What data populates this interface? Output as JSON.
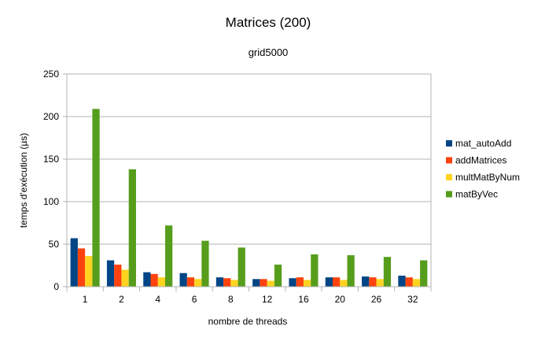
{
  "chart_data": {
    "type": "bar",
    "title": "Matrices (200)",
    "subtitle": "grid5000",
    "xlabel": "nombre de threads",
    "ylabel": "temps d'exécution (µs)",
    "ylim": [
      0,
      250
    ],
    "yticks": [
      0,
      50,
      100,
      150,
      200,
      250
    ],
    "grid": "horizontal",
    "legend": "right",
    "categories": [
      "1",
      "2",
      "4",
      "6",
      "8",
      "12",
      "16",
      "20",
      "26",
      "32"
    ],
    "series": [
      {
        "name": "mat_autoAdd",
        "color": "#004586",
        "values": [
          57,
          31,
          17,
          16,
          11,
          9,
          10,
          11,
          12,
          13
        ]
      },
      {
        "name": "addMatrices",
        "color": "#ff420e",
        "values": [
          45,
          26,
          15,
          11,
          10,
          9,
          11,
          11,
          11,
          11
        ]
      },
      {
        "name": "multMatByNum",
        "color": "#ffd320",
        "values": [
          36,
          20,
          11,
          9,
          8,
          7,
          8,
          8,
          9,
          9
        ]
      },
      {
        "name": "matByVec",
        "color": "#579d1c",
        "values": [
          209,
          138,
          72,
          54,
          46,
          26,
          38,
          37,
          35,
          31
        ]
      }
    ]
  }
}
